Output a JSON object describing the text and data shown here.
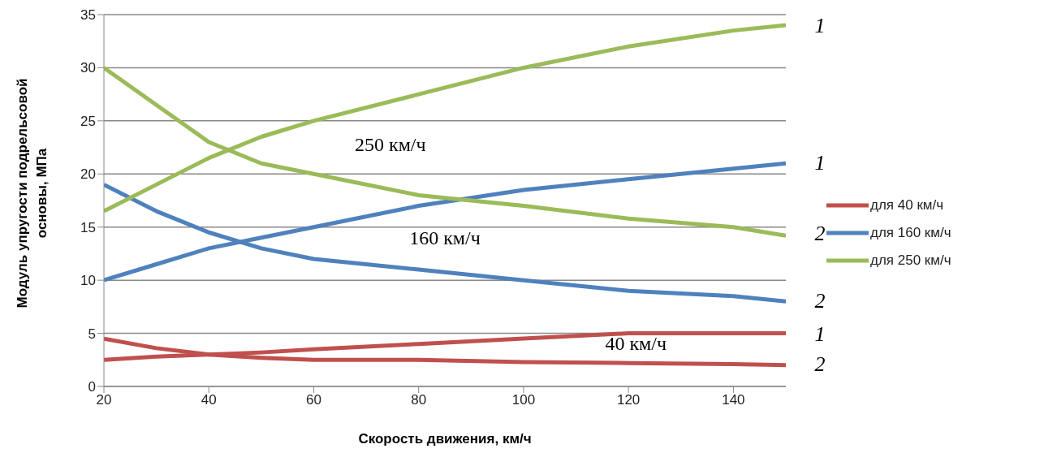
{
  "chart_data": {
    "type": "line",
    "xlabel": "Скорость движения, км/ч",
    "ylabel": "Модуль упругости подрельсовой основы, МПа",
    "x": [
      20,
      30,
      40,
      50,
      60,
      80,
      100,
      120,
      140,
      150
    ],
    "series": [
      {
        "name": "для 40 км/ч",
        "color": "#c0504d",
        "values": [
          2.5,
          2.8,
          3,
          3.2,
          3.5,
          4,
          4.5,
          5,
          5,
          5
        ]
      },
      {
        "color": "#c0504d",
        "values": [
          4.5,
          3.6,
          3,
          2.7,
          2.5,
          2.5,
          2.3,
          2.2,
          2.1,
          2
        ]
      },
      {
        "name": "для 160 км/ч",
        "color": "#4f81bd",
        "values": [
          10,
          11.5,
          13,
          14,
          15,
          17,
          18.5,
          19.5,
          20.5,
          21
        ]
      },
      {
        "color": "#4f81bd",
        "values": [
          19,
          16.5,
          14.5,
          13,
          12,
          11,
          10,
          9,
          8.5,
          8
        ]
      },
      {
        "name": "для 250 км/ч",
        "color": "#9bbb59",
        "values": [
          16.5,
          19,
          21.5,
          23.5,
          25,
          27.5,
          30,
          32,
          33.5,
          34
        ]
      },
      {
        "color": "#9bbb59",
        "values": [
          30,
          26.5,
          23,
          21,
          20,
          18,
          17,
          15.8,
          15,
          14.2
        ]
      }
    ],
    "xlim": [
      20,
      150
    ],
    "xticks": [
      20,
      40,
      60,
      80,
      100,
      120,
      140
    ],
    "ylim": [
      0,
      35
    ],
    "yticks": [
      0,
      5,
      10,
      15,
      20,
      25,
      30,
      35
    ],
    "grid": "y",
    "legend": "right",
    "marker": "none",
    "line_style": "solid",
    "annotations": [
      "1",
      "2",
      "1",
      "2",
      "1",
      "2",
      "250 км/ч",
      "160 км/ч",
      "40 км/ч"
    ]
  }
}
